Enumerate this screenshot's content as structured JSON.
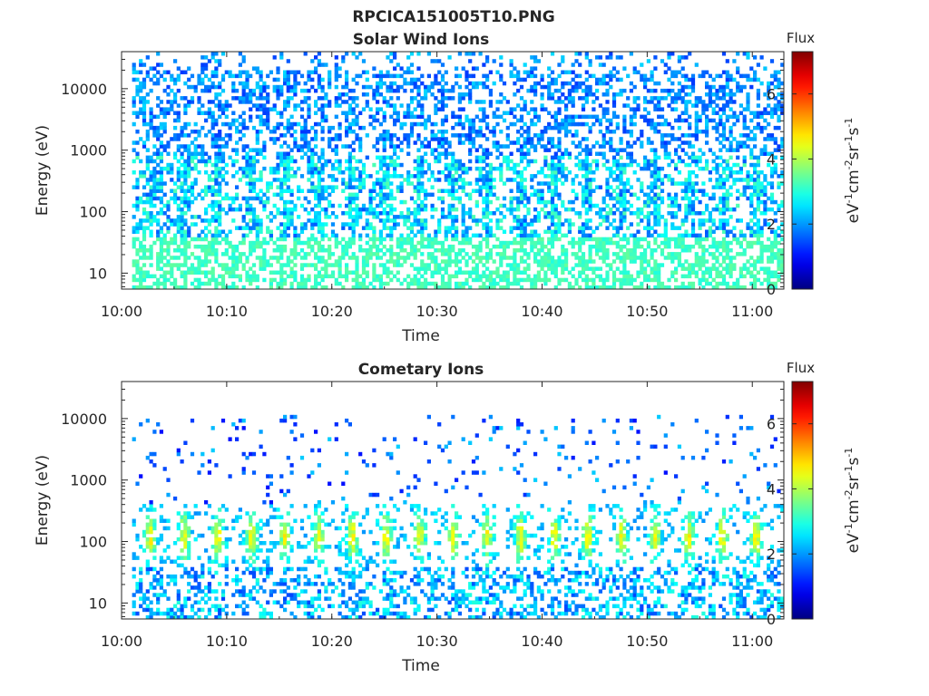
{
  "figure": {
    "title": "RPCICA151005T10.PNG"
  },
  "chart_data": [
    {
      "type": "heatmap",
      "title": "Solar Wind Ions",
      "xlabel": "Time",
      "ylabel": "Energy (eV)",
      "x_ticks": [
        "10:00",
        "10:10",
        "10:20",
        "10:30",
        "10:40",
        "10:50",
        "11:00"
      ],
      "x_range": [
        "10:00",
        "11:03"
      ],
      "y_scale": "log",
      "y_ticks": [
        "10",
        "100",
        "1000",
        "10000"
      ],
      "y_range": [
        5.5,
        40000
      ],
      "data_start": "10:01",
      "colorbar": {
        "title": "Flux",
        "label": "eV-1cm-2sr-1s-1",
        "label_parts": [
          "eV",
          "-1",
          "cm",
          "-2",
          "sr",
          "-1",
          "s",
          "-1"
        ],
        "ticks": [
          "0",
          "2",
          "4",
          "6"
        ],
        "range": [
          0,
          7.3
        ],
        "colormap": "jet"
      },
      "features": {
        "background_flux": 1.3,
        "band_energy_ev": 180,
        "band_flux": 2.6,
        "low_energy_flux": 3.2,
        "pulse_period_min": 3.2
      }
    },
    {
      "type": "heatmap",
      "title": "Cometary Ions",
      "xlabel": "Time",
      "ylabel": "Energy (eV)",
      "x_ticks": [
        "10:00",
        "10:10",
        "10:20",
        "10:30",
        "10:40",
        "10:50",
        "11:00"
      ],
      "x_range": [
        "10:00",
        "11:03"
      ],
      "y_scale": "log",
      "y_ticks": [
        "10",
        "100",
        "1000",
        "10000"
      ],
      "y_range": [
        5.5,
        40000
      ],
      "data_start": "10:01",
      "colorbar": {
        "title": "Flux",
        "label": "eV-1cm-2sr-1s-1",
        "label_parts": [
          "eV",
          "-1",
          "cm",
          "-2",
          "sr",
          "-1",
          "s",
          "-1"
        ],
        "ticks": [
          "0",
          "2",
          "4",
          "6"
        ],
        "range": [
          0,
          7.3
        ],
        "colormap": "jet"
      },
      "features": {
        "background_flux": 1.0,
        "band_energy_ev": 120,
        "band_flux": 4.3,
        "low_energy_flux": 2.2,
        "pulse_period_min": 3.2
      }
    }
  ]
}
